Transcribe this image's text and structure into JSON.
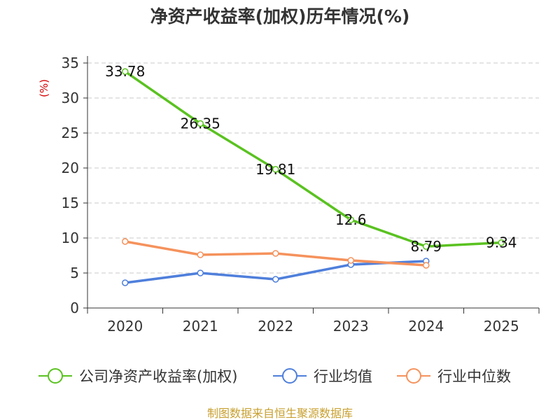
{
  "title": "净资产收益率(加权)历年情况(%)",
  "source": "制图数据来自恒生聚源数据库",
  "chart_data": {
    "type": "line",
    "title": "净资产收益率(加权)历年情况(%)",
    "ylabel": "(%)",
    "ylim": [
      0,
      35
    ],
    "yticks": [
      0,
      5,
      10,
      15,
      20,
      25,
      30,
      35
    ],
    "categories": [
      "2020",
      "2021",
      "2022",
      "2023",
      "2024",
      "2025"
    ],
    "grid": "horizontal-dashed",
    "legend_position": "bottom",
    "series": [
      {
        "name": "公司净资产收益率(加权)",
        "color": "#5ac220",
        "labels": true,
        "values": [
          33.78,
          26.35,
          19.81,
          12.6,
          8.79,
          9.34
        ]
      },
      {
        "name": "行业均值",
        "color": "#4f7fdb",
        "labels": false,
        "values": [
          3.6,
          5.0,
          4.1,
          6.2,
          6.7,
          null
        ]
      },
      {
        "name": "行业中位数",
        "color": "#f5925c",
        "labels": false,
        "values": [
          9.5,
          7.6,
          7.8,
          6.8,
          6.1,
          null
        ]
      }
    ]
  }
}
